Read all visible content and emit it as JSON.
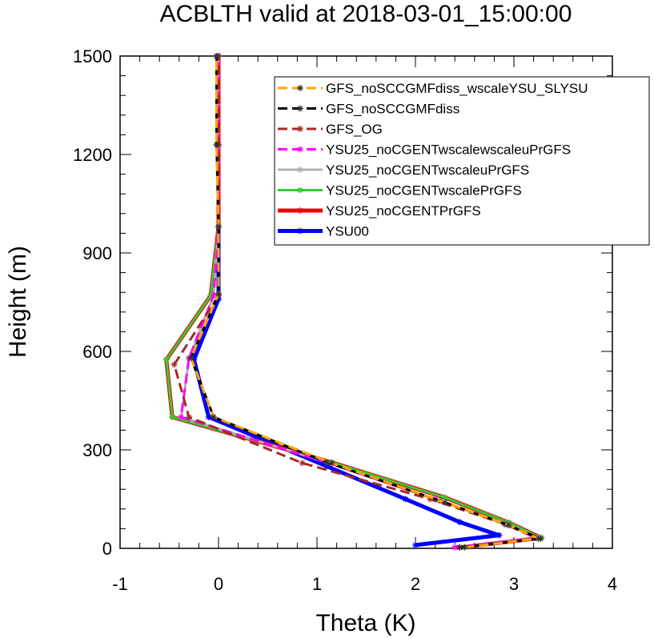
{
  "chart_data": {
    "type": "line",
    "title": "ACBLTH valid at 2018-03-01_15:00:00",
    "xlabel": "Theta (K)",
    "ylabel": "Height (m)",
    "xlim": [
      -1,
      4
    ],
    "ylim": [
      0,
      1500
    ],
    "xticks": [
      "-1",
      "0",
      "1",
      "2",
      "3",
      "4"
    ],
    "yticks": [
      "0",
      "300",
      "600",
      "900",
      "1200",
      "1500"
    ],
    "grid": false,
    "legend_position": "top-right",
    "series": [
      {
        "name": "GFS_noSCCGMFdiss_wscaleYSU_SLYSU",
        "color": "#ffa500",
        "dash": "dash",
        "points": [
          [
            2.5,
            3
          ],
          [
            3.25,
            30
          ],
          [
            2.95,
            70
          ],
          [
            2.3,
            140
          ],
          [
            1.15,
            260
          ],
          [
            -0.05,
            400
          ],
          [
            -0.28,
            580
          ],
          [
            0.0,
            775
          ],
          [
            0.0,
            980
          ],
          [
            -0.02,
            1230
          ],
          [
            -0.02,
            1500
          ]
        ]
      },
      {
        "name": "GFS_noSCCGMFdiss",
        "color": "#000000",
        "dash": "dash",
        "points": [
          [
            2.45,
            3
          ],
          [
            3.27,
            30
          ],
          [
            2.93,
            72
          ],
          [
            2.25,
            145
          ],
          [
            1.1,
            262
          ],
          [
            -0.05,
            400
          ],
          [
            -0.28,
            580
          ],
          [
            0.0,
            775
          ],
          [
            0.0,
            980
          ],
          [
            -0.02,
            1230
          ],
          [
            -0.02,
            1500
          ]
        ]
      },
      {
        "name": "GFS_OG",
        "color": "#a52a2a",
        "dash": "dash",
        "points": [
          [
            2.45,
            3
          ],
          [
            3.25,
            30
          ],
          [
            2.9,
            75
          ],
          [
            2.15,
            150
          ],
          [
            0.85,
            260
          ],
          [
            -0.3,
            400
          ],
          [
            -0.45,
            560
          ],
          [
            0.0,
            770
          ],
          [
            0.0,
            980
          ],
          [
            0.0,
            1230
          ],
          [
            0.0,
            1500
          ]
        ]
      },
      {
        "name": "YSU25_noCGENTwscalewscaleuPrGFS",
        "color": "#ff00ff",
        "dash": "dash",
        "points": [
          [
            2.4,
            3
          ],
          [
            3.22,
            32
          ],
          [
            2.9,
            75
          ],
          [
            2.2,
            150
          ],
          [
            1.1,
            262
          ],
          [
            -0.38,
            400
          ],
          [
            -0.3,
            580
          ],
          [
            -0.05,
            770
          ],
          [
            0.0,
            980
          ],
          [
            0.0,
            1230
          ],
          [
            0.0,
            1500
          ]
        ]
      },
      {
        "name": "YSU25_noCGENTwscaleuPrGFS",
        "color": "#b0b0b0",
        "dash": "solid",
        "points": [
          [
            2.4,
            3
          ],
          [
            3.25,
            32
          ],
          [
            2.92,
            75
          ],
          [
            2.2,
            150
          ],
          [
            1.1,
            262
          ],
          [
            -0.38,
            400
          ],
          [
            -0.3,
            580
          ],
          [
            -0.05,
            770
          ],
          [
            0.0,
            980
          ],
          [
            0.0,
            1230
          ],
          [
            0.0,
            1500
          ]
        ]
      },
      {
        "name": "YSU25_noCGENTwscalePrGFS",
        "color": "#33cc33",
        "dash": "solid",
        "points": [
          [
            2.45,
            3
          ],
          [
            3.28,
            32
          ],
          [
            2.95,
            78
          ],
          [
            2.3,
            155
          ],
          [
            1.15,
            262
          ],
          [
            -0.47,
            400
          ],
          [
            -0.53,
            575
          ],
          [
            -0.08,
            770
          ],
          [
            0.0,
            980
          ],
          [
            0.0,
            1230
          ],
          [
            0.0,
            1500
          ]
        ]
      },
      {
        "name": "YSU25_noCGENTPrGFS",
        "color": "#ee0000",
        "dash": "solid",
        "points": [
          [
            2.45,
            3
          ],
          [
            3.28,
            32
          ],
          [
            2.95,
            78
          ],
          [
            2.3,
            155
          ],
          [
            1.15,
            262
          ],
          [
            -0.47,
            400
          ],
          [
            -0.53,
            575
          ],
          [
            -0.08,
            770
          ],
          [
            0.0,
            980
          ],
          [
            0.0,
            1230
          ],
          [
            0.0,
            1500
          ]
        ]
      },
      {
        "name": "YSU00",
        "color": "#0000ff",
        "dash": "solid",
        "points": [
          [
            2.0,
            10
          ],
          [
            2.85,
            40
          ],
          [
            2.45,
            80
          ],
          [
            1.9,
            150
          ],
          [
            1.1,
            250
          ],
          [
            -0.1,
            400
          ],
          [
            -0.25,
            575
          ],
          [
            0.0,
            760
          ],
          [
            0.0,
            980
          ],
          [
            0.0,
            1230
          ],
          [
            0.0,
            1500
          ]
        ]
      }
    ]
  }
}
